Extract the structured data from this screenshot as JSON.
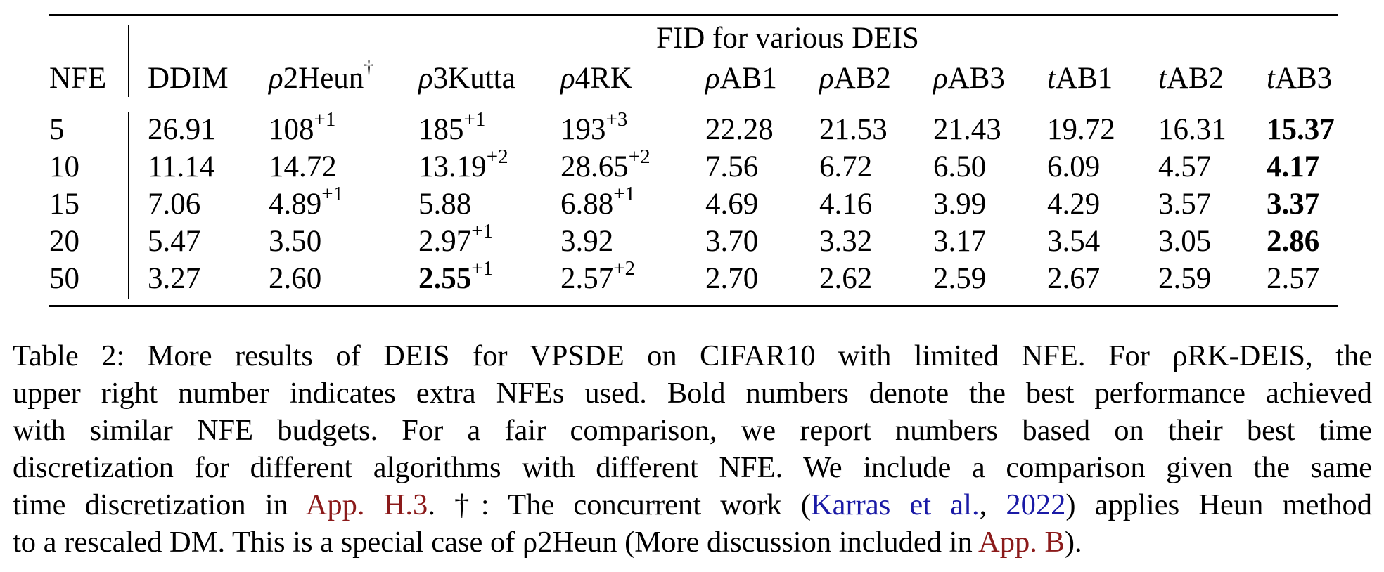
{
  "table": {
    "group_header": "FID for various DEIS",
    "columns": [
      {
        "prefix": "",
        "name": "NFE",
        "sup": ""
      },
      {
        "prefix": "",
        "name": "DDIM",
        "sup": ""
      },
      {
        "prefix": "ρ",
        "name": "2Heun",
        "sup": "†"
      },
      {
        "prefix": "ρ",
        "name": "3Kutta",
        "sup": ""
      },
      {
        "prefix": "ρ",
        "name": "4RK",
        "sup": ""
      },
      {
        "prefix": "ρ",
        "name": "AB1",
        "sup": ""
      },
      {
        "prefix": "ρ",
        "name": "AB2",
        "sup": ""
      },
      {
        "prefix": "ρ",
        "name": "AB3",
        "sup": ""
      },
      {
        "prefix": "t",
        "name": "AB1",
        "sup": ""
      },
      {
        "prefix": "t",
        "name": "AB2",
        "sup": ""
      },
      {
        "prefix": "t",
        "name": "AB3",
        "sup": ""
      }
    ],
    "rows": [
      [
        {
          "v": "5"
        },
        {
          "v": "26.91"
        },
        {
          "v": "108",
          "s": "+1"
        },
        {
          "v": "185",
          "s": "+1"
        },
        {
          "v": "193",
          "s": "+3"
        },
        {
          "v": "22.28"
        },
        {
          "v": "21.53"
        },
        {
          "v": "21.43"
        },
        {
          "v": "19.72"
        },
        {
          "v": "16.31"
        },
        {
          "v": "15.37",
          "b": true
        }
      ],
      [
        {
          "v": "10"
        },
        {
          "v": "11.14"
        },
        {
          "v": "14.72"
        },
        {
          "v": "13.19",
          "s": "+2"
        },
        {
          "v": "28.65",
          "s": "+2"
        },
        {
          "v": "7.56"
        },
        {
          "v": "6.72"
        },
        {
          "v": "6.50"
        },
        {
          "v": "6.09"
        },
        {
          "v": "4.57"
        },
        {
          "v": "4.17",
          "b": true
        }
      ],
      [
        {
          "v": "15"
        },
        {
          "v": "7.06"
        },
        {
          "v": "4.89",
          "s": "+1"
        },
        {
          "v": "5.88"
        },
        {
          "v": "6.88",
          "s": "+1"
        },
        {
          "v": "4.69"
        },
        {
          "v": "4.16"
        },
        {
          "v": "3.99"
        },
        {
          "v": "4.29"
        },
        {
          "v": "3.57"
        },
        {
          "v": "3.37",
          "b": true
        }
      ],
      [
        {
          "v": "20"
        },
        {
          "v": "5.47"
        },
        {
          "v": "3.50"
        },
        {
          "v": "2.97",
          "s": "+1"
        },
        {
          "v": "3.92"
        },
        {
          "v": "3.70"
        },
        {
          "v": "3.32"
        },
        {
          "v": "3.17"
        },
        {
          "v": "3.54"
        },
        {
          "v": "3.05"
        },
        {
          "v": "2.86",
          "b": true
        }
      ],
      [
        {
          "v": "50"
        },
        {
          "v": "3.27"
        },
        {
          "v": "2.60"
        },
        {
          "v": "2.55",
          "s": "+1",
          "b": true
        },
        {
          "v": "2.57",
          "s": "+2"
        },
        {
          "v": "2.70"
        },
        {
          "v": "2.62"
        },
        {
          "v": "2.59"
        },
        {
          "v": "2.67"
        },
        {
          "v": "2.59"
        },
        {
          "v": "2.57"
        }
      ]
    ]
  },
  "caption": {
    "l1": "Table 2: More results of DEIS for VPSDE on CIFAR10 with limited NFE. For ρRK-DEIS, the",
    "l2": "upper right number indicates extra NFEs used. Bold numbers denote the best performance achieved",
    "l3": "with similar NFE budgets.  For a fair comparison, we report numbers based on their best time",
    "l4": "discretization for different algorithms with different NFE. We include a comparison given the same",
    "l5_a": "time discretization in ",
    "l5_ref1": "App. H.3",
    "l5_b": ". †: The concurrent work (",
    "l5_cite_author": "Karras et al.",
    "l5_c": ", ",
    "l5_cite_year": "2022",
    "l5_d": ") applies Heun method",
    "l6_a": "to a rescaled DM. This is a special case of ρ2Heun (More discussion included in ",
    "l6_ref": "App. B",
    "l6_b": ")."
  },
  "colors": {
    "ref_link": "#8b1a1a",
    "cite_link": "#1a1aa6"
  }
}
